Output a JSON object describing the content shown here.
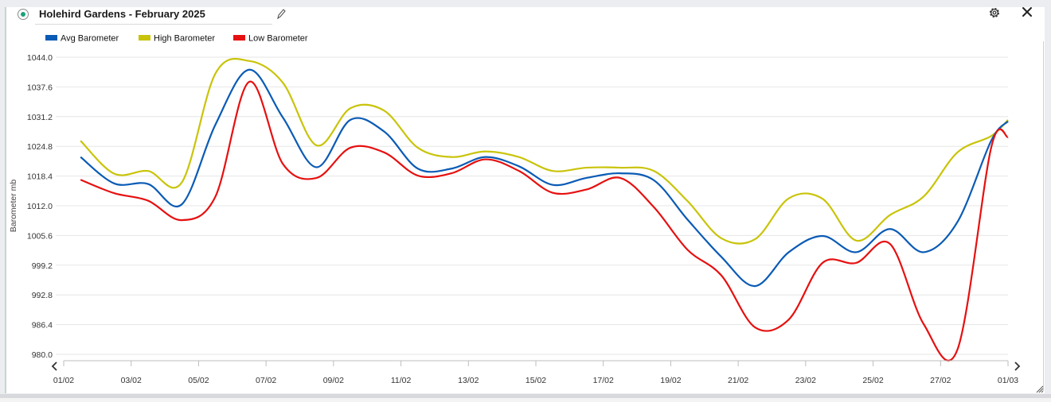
{
  "header": {
    "title": "Holehird Gardens - February 2025"
  },
  "icons": {
    "edit": "pencil-icon",
    "settings": "gear-icon",
    "close": "close-icon",
    "select": "radio-selected-icon",
    "prev": "chevron-left-icon",
    "next": "chevron-right-icon",
    "resize": "resize-handle-icon"
  },
  "colors": {
    "avg": "#0a5bb5",
    "high": "#c9c40a",
    "low": "#e61010",
    "grid": "#e6e6e6"
  },
  "chart_data": {
    "type": "line",
    "ylabel": "Barometer mb",
    "ylim": [
      980.0,
      1044.0
    ],
    "y_ticks": [
      "1044.0",
      "1037.6",
      "1031.2",
      "1024.8",
      "1018.4",
      "1012.0",
      "1005.6",
      "999.2",
      "992.8",
      "986.4",
      "980.0"
    ],
    "x_ticks": [
      "01/02",
      "03/02",
      "05/02",
      "07/02",
      "09/02",
      "11/02",
      "13/02",
      "15/02",
      "17/02",
      "19/02",
      "21/02",
      "23/02",
      "25/02",
      "27/02",
      "01/03"
    ],
    "x_day_range": [
      0,
      28
    ],
    "legend_position": "top-left",
    "series": [
      {
        "name": "Avg Barometer",
        "x": [
          0.5,
          1.5,
          2.5,
          3.5,
          4.5,
          5.5,
          6.5,
          7.5,
          8.5,
          9.5,
          10.5,
          11.5,
          12.5,
          13.5,
          14.5,
          15.5,
          16.5,
          17.5,
          18.5,
          19.5,
          20.5,
          21.5,
          22.5,
          23.5,
          24.5,
          25.5,
          26.5,
          27.5,
          28.0
        ],
        "values": [
          1022.5,
          1016.8,
          1016.7,
          1012.3,
          1029.5,
          1041.3,
          1031.0,
          1020.3,
          1030.5,
          1028.0,
          1020.0,
          1020.0,
          1022.5,
          1020.5,
          1016.5,
          1018.0,
          1019.0,
          1017.5,
          1009.0,
          1001.0,
          994.7,
          1002.0,
          1005.5,
          1002.0,
          1007.0,
          1002.0,
          1008.5,
          1026.0,
          1030.2
        ]
      },
      {
        "name": "High Barometer",
        "x": [
          0.5,
          1.5,
          2.5,
          3.5,
          4.5,
          5.5,
          6.5,
          7.5,
          8.5,
          9.5,
          10.5,
          11.5,
          12.5,
          13.5,
          14.5,
          15.5,
          16.5,
          17.5,
          18.5,
          19.5,
          20.5,
          21.5,
          22.5,
          23.5,
          24.5,
          25.5,
          26.5,
          27.5,
          28.0
        ],
        "values": [
          1026.0,
          1018.9,
          1019.5,
          1017.0,
          1040.5,
          1043.2,
          1038.5,
          1025.0,
          1033.0,
          1032.5,
          1024.5,
          1022.5,
          1023.7,
          1022.5,
          1019.5,
          1020.2,
          1020.2,
          1019.5,
          1013.0,
          1005.0,
          1004.8,
          1013.6,
          1013.5,
          1004.5,
          1010.0,
          1014.0,
          1023.5,
          1027.0,
          1030.5
        ]
      },
      {
        "name": "Low Barometer",
        "x": [
          0.5,
          1.5,
          2.5,
          3.5,
          4.5,
          5.5,
          6.5,
          7.5,
          8.5,
          9.5,
          10.5,
          11.5,
          12.5,
          13.5,
          14.5,
          15.5,
          16.5,
          17.5,
          18.5,
          19.5,
          20.5,
          21.5,
          22.5,
          23.5,
          24.5,
          25.5,
          26.5,
          27.5,
          28.0
        ],
        "values": [
          1017.6,
          1014.7,
          1013.1,
          1008.9,
          1014.0,
          1038.7,
          1021.0,
          1018.0,
          1024.5,
          1023.5,
          1018.5,
          1019.0,
          1022.0,
          1019.5,
          1014.8,
          1015.5,
          1018.0,
          1011.7,
          1002.5,
          997.0,
          985.8,
          987.5,
          999.7,
          999.7,
          1003.8,
          986.5,
          981.0,
          1024.5,
          1026.8
        ]
      }
    ]
  }
}
